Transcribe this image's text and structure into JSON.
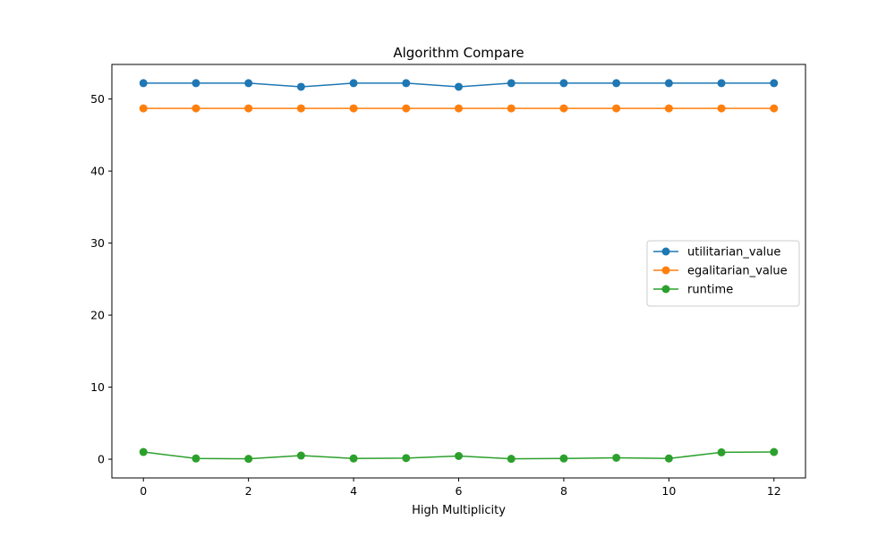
{
  "chart_data": {
    "type": "line",
    "title": "Algorithm Compare",
    "xlabel": "High Multiplicity",
    "ylabel": "",
    "x": [
      0,
      1,
      2,
      3,
      4,
      5,
      6,
      7,
      8,
      9,
      10,
      11,
      12
    ],
    "xlim": [
      -0.6,
      12.6
    ],
    "ylim": [
      -2.6,
      54.8
    ],
    "xticks": [
      0,
      2,
      4,
      6,
      8,
      10,
      12
    ],
    "yticks": [
      0,
      10,
      20,
      30,
      40,
      50
    ],
    "grid": false,
    "legend_position": "center-right",
    "series": [
      {
        "name": "utilitarian_value",
        "color": "#1f77b4",
        "marker": "circle",
        "values": [
          52.2,
          52.2,
          52.2,
          51.7,
          52.2,
          52.2,
          51.7,
          52.2,
          52.2,
          52.2,
          52.2,
          52.2,
          52.2
        ]
      },
      {
        "name": "egalitarian_value",
        "color": "#ff7f0e",
        "marker": "circle",
        "values": [
          48.7,
          48.7,
          48.7,
          48.7,
          48.7,
          48.7,
          48.7,
          48.7,
          48.7,
          48.7,
          48.7,
          48.7,
          48.7
        ]
      },
      {
        "name": "runtime",
        "color": "#2ca02c",
        "marker": "circle",
        "values": [
          1.0,
          0.1,
          0.05,
          0.5,
          0.1,
          0.15,
          0.45,
          0.05,
          0.1,
          0.2,
          0.1,
          0.95,
          1.0
        ]
      }
    ]
  }
}
